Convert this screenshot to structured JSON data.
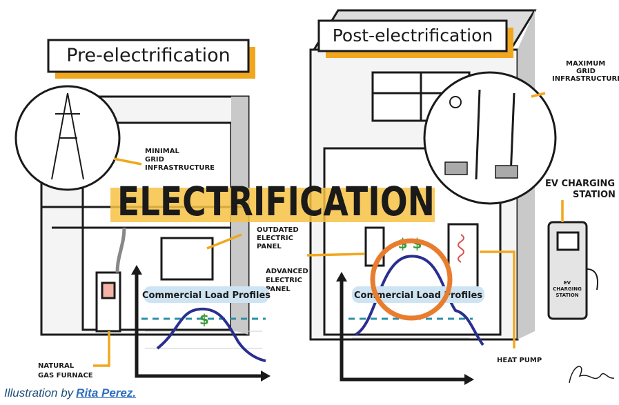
{
  "header": {
    "pre_title": "Pre-electrification",
    "post_title": "Post-electrification",
    "main_title": "ELECTRIFICATION"
  },
  "labels": {
    "minimal_grid": [
      "MINIMAL",
      "GRID",
      "INFRASTRUCTURE"
    ],
    "outdated_panel": [
      "OUTDATED",
      "ELECTRIC",
      "PANEL"
    ],
    "natural_gas": [
      "NATURAL",
      "GAS FURNACE"
    ],
    "advanced_panel": [
      "ADVANCED",
      "ELECTRIC",
      "PANEL"
    ],
    "maximum_grid": [
      "MAXIMUM",
      "GRID",
      "INFRASTRUCTURE"
    ],
    "ev_station": [
      "EV CHARGING",
      "STATION"
    ],
    "ev_station_sign": [
      "EV",
      "CHARGING",
      "STATION"
    ],
    "heat_pump": "HEAT PUMP"
  },
  "graphs": [
    {
      "label": "Commercial Load Profiles",
      "cost": "$"
    },
    {
      "label": "Commercial Load Profiles",
      "cost": "$ $"
    }
  ],
  "caption": {
    "prefix": "Illustration by",
    "link": "Rita Perez."
  }
}
